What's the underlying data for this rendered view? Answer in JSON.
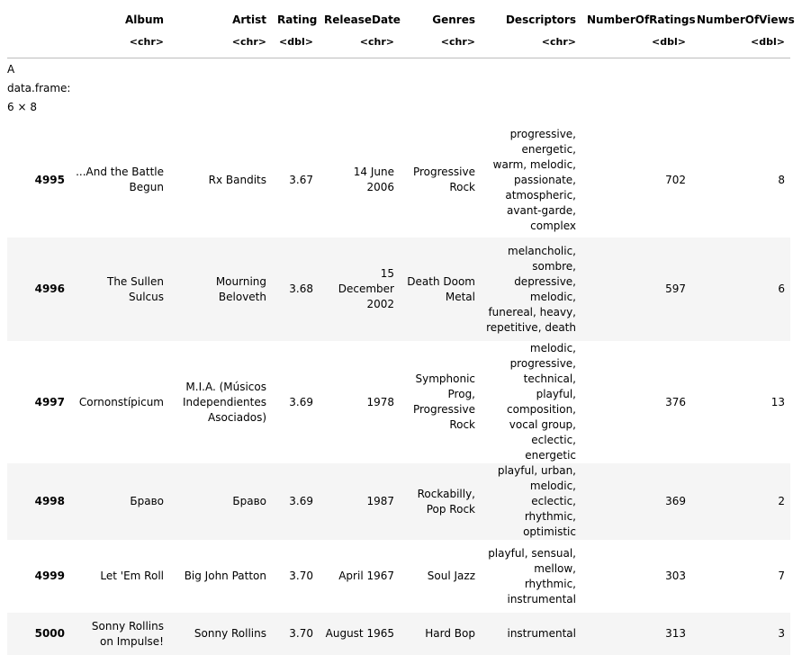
{
  "table": {
    "columns": [
      "",
      "Album",
      "Artist",
      "Rating",
      "ReleaseDate",
      "Genres",
      "Descriptors",
      "NumberOfRatings",
      "NumberOfViews"
    ],
    "types": [
      "",
      "<chr>",
      "<chr>",
      "<dbl>",
      "<chr>",
      "<chr>",
      "<chr>",
      "<dbl>",
      "<dbl>"
    ],
    "caption": "A data.frame: 6 × 8",
    "rows": [
      {
        "id": "4995",
        "album": "...And the Battle Begun",
        "artist": "Rx Bandits",
        "rating": "3.67",
        "release_date": "14 June 2006",
        "genres": "Progressive Rock",
        "descriptors": "progressive, energetic, warm, melodic, passionate, atmospheric, avant-garde, complex",
        "num_ratings": "702",
        "num_views": "8"
      },
      {
        "id": "4996",
        "album": "The Sullen Sulcus",
        "artist": "Mourning Beloveth",
        "rating": "3.68",
        "release_date": "15 December 2002",
        "genres": "Death Doom Metal",
        "descriptors": "melancholic, sombre, depressive, melodic, funereal, heavy, repetitive, death",
        "num_ratings": "597",
        "num_views": "6"
      },
      {
        "id": "4997",
        "album": "Cornonstípicum",
        "artist": "M.I.A. (Músicos Independientes Asociados)",
        "rating": "3.69",
        "release_date": "1978",
        "genres": "Symphonic Prog, Progressive Rock",
        "descriptors": "melodic, progressive, technical, playful, composition, vocal group, eclectic, energetic",
        "num_ratings": "376",
        "num_views": "13"
      },
      {
        "id": "4998",
        "album": "Браво",
        "artist": "Браво",
        "rating": "3.69",
        "release_date": "1987",
        "genres": "Rockabilly, Pop Rock",
        "descriptors": "playful, urban, melodic, eclectic, rhythmic, optimistic",
        "num_ratings": "369",
        "num_views": "2"
      },
      {
        "id": "4999",
        "album": "Let 'Em Roll",
        "artist": "Big John Patton",
        "rating": "3.70",
        "release_date": "April 1967",
        "genres": "Soul Jazz",
        "descriptors": "playful, sensual, mellow, rhythmic, instrumental",
        "num_ratings": "303",
        "num_views": "7"
      },
      {
        "id": "5000",
        "album": "Sonny Rollins on Impulse!",
        "artist": "Sonny Rollins",
        "rating": "3.70",
        "release_date": "August 1965",
        "genres": "Hard Bop",
        "descriptors": "instrumental",
        "num_ratings": "313",
        "num_views": "3"
      }
    ]
  }
}
